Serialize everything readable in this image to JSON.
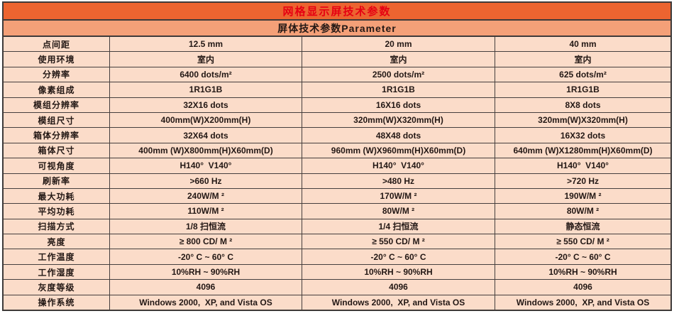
{
  "colors": {
    "title_bg": "#ec6430",
    "title_text": "#e60012",
    "subtitle_bg": "#f4a078",
    "cell_bg": "#fbdcc9",
    "border": "#3e3a39",
    "cell_text": "#231815"
  },
  "header": {
    "title": "网格显示屏技术参数",
    "subtitle": "屏体技术参数Parameter"
  },
  "table": {
    "rows": [
      {
        "label": "点间距",
        "values": [
          "12.5 mm",
          "20 mm",
          "40 mm"
        ]
      },
      {
        "label": "使用环境",
        "values": [
          "室内",
          "室内",
          "室内"
        ]
      },
      {
        "label": "分辨率",
        "values": [
          "6400 dots/m²",
          "2500 dots/m²",
          "625 dots/m²"
        ]
      },
      {
        "label": "像素组成",
        "values": [
          "1R1G1B",
          "1R1G1B",
          "1R1G1B"
        ]
      },
      {
        "label": "模组分辨率",
        "values": [
          "32X16 dots",
          "16X16 dots",
          "8X8 dots"
        ]
      },
      {
        "label": "模组尺寸",
        "values": [
          "400mm(W)X200mm(H)",
          "320mm(W)X320mm(H)",
          "320mm(W)X320mm(H)"
        ]
      },
      {
        "label": "箱体分辨率",
        "values": [
          "32X64 dots",
          "48X48 dots",
          "16X32 dots"
        ]
      },
      {
        "label": "箱体尺寸",
        "values": [
          "400mm (W)X800mm(H)X60mm(D)",
          "960mm (W)X960mm(H)X60mm(D)",
          "640mm (W)X1280mm(H)X60mm(D)"
        ]
      },
      {
        "label": "可视角度",
        "values": [
          "H140°  V140°",
          "H140°  V140°",
          "H140°  V140°"
        ]
      },
      {
        "label": "刷新率",
        "values": [
          ">660 Hz",
          ">480 Hz",
          ">720 Hz"
        ]
      },
      {
        "label": "最大功耗",
        "values": [
          "240W/M ²",
          "170W/M ²",
          "190W/M ²"
        ]
      },
      {
        "label": "平均功耗",
        "values": [
          "110W/M ²",
          "80W/M ²",
          "80W/M ²"
        ]
      },
      {
        "label": "扫描方式",
        "values": [
          "1/8 扫恒流",
          "1/4 扫恒流",
          "静态恒流"
        ]
      },
      {
        "label": "亮度",
        "values": [
          "≥ 800 CD/ M ²",
          "≥ 550 CD/ M ²",
          "≥ 550 CD/ M ²"
        ]
      },
      {
        "label": "工作温度",
        "values": [
          "-20° C ~ 60° C",
          "-20° C ~ 60° C",
          "-20° C ~ 60° C"
        ]
      },
      {
        "label": "工作湿度",
        "values": [
          "10%RH ~ 90%RH",
          "10%RH ~ 90%RH",
          "10%RH ~ 90%RH"
        ]
      },
      {
        "label": "灰度等级",
        "values": [
          "4096",
          "4096",
          "4096"
        ]
      },
      {
        "label": "操作系统",
        "values": [
          "Windows 2000,  XP, and Vista OS",
          "Windows 2000,  XP, and Vista OS",
          "Windows 2000,  XP, and Vista OS"
        ]
      }
    ]
  }
}
